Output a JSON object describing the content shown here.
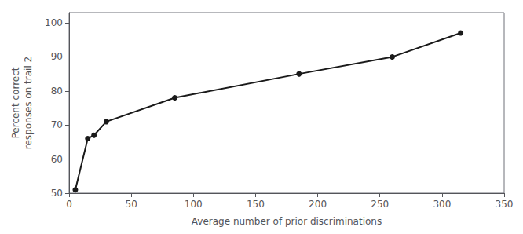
{
  "chart_data": {
    "type": "line",
    "x": [
      5,
      15,
      20,
      30,
      85,
      185,
      260,
      315
    ],
    "values": [
      51,
      66,
      67,
      71,
      78,
      85,
      90,
      97
    ],
    "xlabel": "Average number of prior discriminations",
    "ylabel": "Percent correct\nresponses on trail 2",
    "xlim": [
      0,
      350
    ],
    "ylim": [
      50,
      103
    ],
    "xticks": [
      0,
      50,
      100,
      150,
      200,
      250,
      300,
      350
    ],
    "yticks": [
      50,
      60,
      70,
      80,
      90,
      100
    ],
    "color": "#1a1a1a",
    "marker": "o",
    "grid": false
  }
}
